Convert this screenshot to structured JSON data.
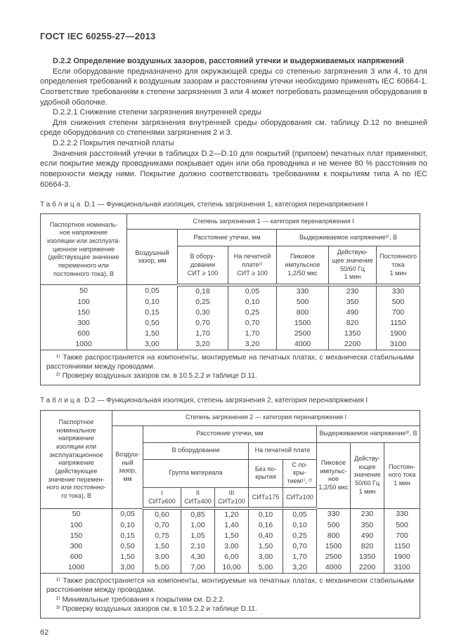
{
  "page": {
    "header": "ГОСТ IEC 60255-27—2013",
    "page_number": "62"
  },
  "body": {
    "heading": "D.2.2 Определение воздушных зазоров, расстояний утечки и выдерживаемых напряжений",
    "paragraphs": [
      "Если оборудование предназначено для окружающей среды со степенью загрязнения 3 или 4, то для определения требований к воздушным зазорам и расстояниям утечки необходимо применять IEC 60664-1. Соответствие требованиям к степени загрязнения 3 или 4 может потребовать размещения оборудования в удобной оболочке.",
      "D.2.2.1 Снижение степени загрязнения внутренней среды",
      "Для снижения степени загрязнения внутренней среды оборудования см. таблицу D.12 по внешней среде оборудования со степенями загрязнения 2 и 3.",
      "D.2.2.2 Покрытия печатной платы",
      "Значения расстояний утечки в таблицах D.2—D.10 для покрытий (припоем) печатных плат применяют, если покрытие между проводниками покрывает один или оба проводника и не менее 80 % расстояния по поверхности между ними. Покрытие должно соответствовать требованиям к покрытиям типа A по IEC 60664-3."
    ]
  },
  "table_d1": {
    "caption_label": "Таблица",
    "caption_text": " D.1 — Функциональная изоляция, степень загрязнения 1, категория перенапряжения I",
    "header": {
      "col_voltage": "Паспортное номиналь-\nное напряжение\nизоляции или эксплуата-\nционное напряжение\n(действующее значение\nпеременного или\nпостоянного тока), В",
      "span_top": "Степень загрязнения 1 — категория перенапряжения I",
      "col_clearance": "Воздушный\nзазор, мм",
      "span_leakage": "Расстояние утечки, мм",
      "span_withstand": "Выдерживаемое напряжение²⁾, В",
      "col_equipment": "В обору-\nдовании\nСИТ ≥ 100",
      "col_pcb": "На печатной\nплате¹⁾\nСИТ ≥ 100",
      "col_peak": "Пиковое\nимпульсное\n1,2/50 мкс",
      "col_rms": "Действую-\nщее значение\n50/60 Гц\n1 мин",
      "col_dc": "Постоянного\nтока\n1 мин"
    },
    "rows": [
      [
        "50",
        "0,05",
        "0,18",
        "0,05",
        "330",
        "230",
        "330"
      ],
      [
        "100",
        "0,10",
        "0,25",
        "0,10",
        "500",
        "350",
        "500"
      ],
      [
        "150",
        "0,15",
        "0,30",
        "0,25",
        "800",
        "490",
        "700"
      ],
      [
        "300",
        "0,50",
        "0,70",
        "0,70",
        "1500",
        "820",
        "1150"
      ],
      [
        "600",
        "1,50",
        "1,70",
        "1,70",
        "2500",
        "1350",
        "1900"
      ],
      [
        "1000",
        "3,00",
        "3,20",
        "3,20",
        "4000",
        "2200",
        "3100"
      ]
    ],
    "footnotes": [
      "¹⁾ Также распространяется на компоненты, монтируемые на печатных платах, с механически стабильными расстояниями между проводами.",
      "²⁾ Проверку воздушных зазоров см. в 10.5.2.2 и таблице D.11."
    ]
  },
  "table_d2": {
    "caption_label": "Таблица",
    "caption_text": " D.2 — Функциональная изоляция, степень загрязнения 2, категория перенапряжения I",
    "header": {
      "col_voltage": "Паспортное\nноминальное\nнапряжение\nизоляции или\nэксплуатационное\nнапряжение\n(действующее\nзначение перемен-\nного или постоянно-\nго тока), В",
      "span_top": "Степень загрязнения 2 — категория перенапряжения I",
      "col_clearance": "Воздуш-\nный\nзазор,\nмм",
      "span_leakage": "Расстояние утечки, мм",
      "span_withstand": "Выдерживаемое напряжение³⁾, В",
      "span_equipment": "В оборудовании",
      "span_pcb": "На печатной плате",
      "span_material_group": "Группа материала",
      "col_group1": "I\nСИТ≥600",
      "col_group2": "II\nСИТ≥400",
      "col_group3": "III\nСИТ≥100",
      "col_uncoated": "Без по-\nкрытия",
      "col_coated": "С по-\nкры-\nтием¹⁾, ²⁾",
      "col_uncoated_sit": "СИТ≥175",
      "col_coated_sit": "СИТ≥100",
      "col_peak": "Пиковое\nимпульс-\nное\n1,2/50 мкс",
      "col_rms": "Действу-\nющее\nзначение\n50/60 Гц\n1 мин",
      "col_dc": "Постоян-\nного тока\n1 мин"
    },
    "rows": [
      [
        "50",
        "0,05",
        "0,60",
        "0,85",
        "1,20",
        "0,10",
        "0,05",
        "330",
        "230",
        "330"
      ],
      [
        "100",
        "0,10",
        "0,70",
        "1,00",
        "1,40",
        "0,16",
        "0,10",
        "500",
        "350",
        "500"
      ],
      [
        "150",
        "0,15",
        "0,75",
        "1,05",
        "1,50",
        "0,40",
        "0,25",
        "800",
        "490",
        "700"
      ],
      [
        "300",
        "0,50",
        "1,50",
        "2,10",
        "3,00",
        "1,50",
        "0,70",
        "1500",
        "820",
        "1150"
      ],
      [
        "600",
        "1,50",
        "3,00",
        "4,30",
        "6,00",
        "3,00",
        "1,70",
        "2500",
        "1350",
        "1900"
      ],
      [
        "1000",
        "3,00",
        "5,00",
        "7,00",
        "10,00",
        "5,00",
        "3,20",
        "4000",
        "2200",
        "3100"
      ]
    ],
    "footnotes": [
      "¹⁾ Также распространяется на компоненты, монтируемые на печатных платах, с механически стабильными расстояниями между проводами.",
      "²⁾ Минимальные требования к покрытиям см. D.2.2.",
      "³⁾ Проверку воздушных зазоров см. в 10.5.2.2 и таблице D.11."
    ]
  }
}
